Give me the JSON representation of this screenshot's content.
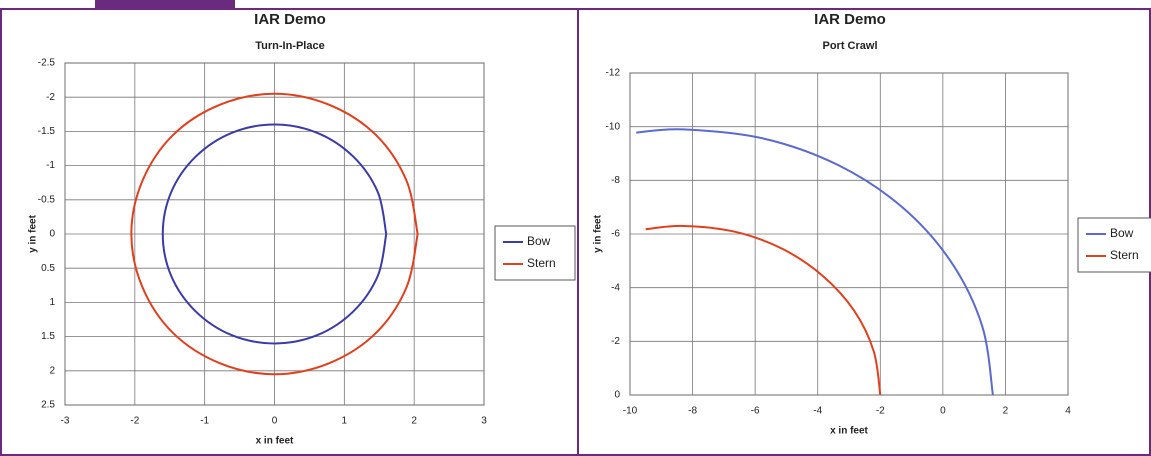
{
  "chart_data": [
    {
      "type": "line",
      "title": "IAR Demo",
      "subtitle": "Turn-In-Place",
      "x_label": "x in feet",
      "y_label": "y in feet",
      "xlim": [
        -3,
        3
      ],
      "xticks": [
        -3,
        -2,
        -1,
        0,
        1,
        2,
        3
      ],
      "ylim": [
        -2.5,
        2.5
      ],
      "yticks": [
        -2.5,
        -2,
        -1.5,
        -1,
        -0.5,
        0,
        0.5,
        1,
        1.5,
        2,
        2.5
      ],
      "y_reversed": true,
      "grid": true,
      "legend": "right",
      "series": [
        {
          "name": "Bow",
          "color": "#3a3aa8",
          "x": [
            1.6,
            1.48,
            1.13,
            0.61,
            0,
            -0.61,
            -1.13,
            -1.48,
            -1.6,
            -1.48,
            -1.13,
            -0.61,
            0,
            0.61,
            1.13,
            1.48,
            1.6
          ],
          "values": [
            0,
            0.61,
            1.13,
            1.48,
            1.6,
            1.48,
            1.13,
            0.61,
            0,
            -0.61,
            -1.13,
            -1.48,
            -1.6,
            -1.48,
            -1.13,
            -0.61,
            0
          ]
        },
        {
          "name": "Stern",
          "color": "#e0401e",
          "x": [
            2.05,
            1.89,
            1.45,
            0.78,
            0,
            -0.78,
            -1.45,
            -1.89,
            -2.05,
            -1.89,
            -1.45,
            -0.78,
            0,
            0.78,
            1.45,
            1.89,
            2.05
          ],
          "values": [
            0,
            0.78,
            1.45,
            1.89,
            2.05,
            1.89,
            1.45,
            0.78,
            0,
            -0.78,
            -1.45,
            -1.89,
            -2.05,
            -1.89,
            -1.45,
            -0.78,
            0
          ]
        }
      ]
    },
    {
      "type": "line",
      "title": "IAR Demo",
      "subtitle": "Port Crawl",
      "x_label": "x in feet",
      "y_label": "y in feet",
      "xlim": [
        -10,
        4
      ],
      "xticks": [
        -10,
        -8,
        -6,
        -4,
        -2,
        0,
        2,
        4
      ],
      "ylim": [
        -12,
        0
      ],
      "yticks": [
        -12,
        -10,
        -8,
        -6,
        -4,
        -2,
        0
      ],
      "y_reversed": true,
      "grid": true,
      "legend": "right",
      "series": [
        {
          "name": "Bow",
          "color": "#5a6ad0",
          "x": [
            1.6,
            1.26,
            0.27,
            -1.3,
            -3.35,
            -5.74,
            -8.3,
            -9.8
          ],
          "values": [
            0,
            -2.56,
            -4.95,
            -7.0,
            -8.57,
            -9.56,
            -9.9,
            -9.78
          ]
        },
        {
          "name": "Stern",
          "color": "#e0401e",
          "x": [
            -2.0,
            -2.21,
            -2.84,
            -3.85,
            -5.15,
            -6.67,
            -8.3,
            -9.5
          ],
          "values": [
            0,
            -1.63,
            -3.15,
            -4.45,
            -5.46,
            -6.09,
            -6.3,
            -6.18
          ]
        }
      ]
    }
  ]
}
